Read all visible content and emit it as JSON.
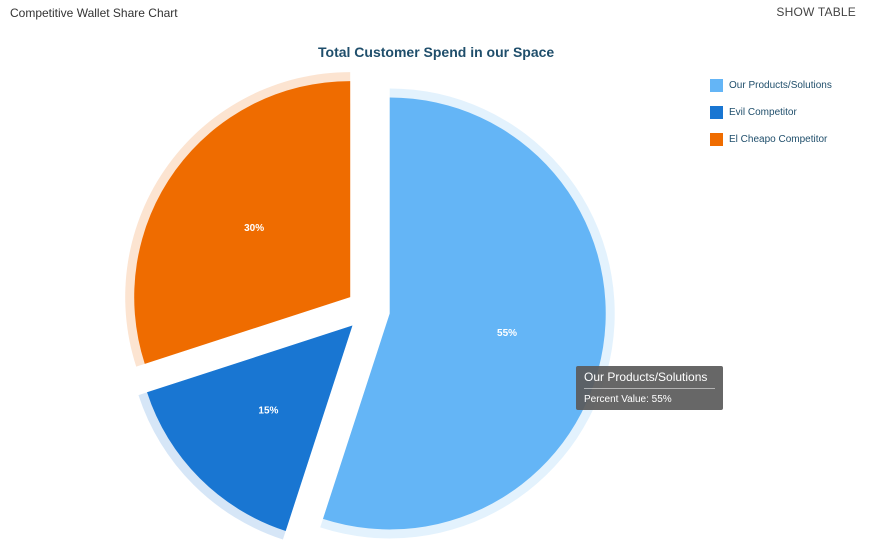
{
  "header": {
    "title": "Competitive Wallet Share Chart",
    "show_table_label": "SHOW TABLE"
  },
  "chart_data": {
    "type": "pie",
    "title": "Total Customer Spend in our Space",
    "categories": [
      "Our Products/Solutions",
      "Evil Competitor",
      "El Cheapo Competitor"
    ],
    "values": [
      55,
      15,
      30
    ],
    "labels": [
      "55%",
      "15%",
      "30%"
    ],
    "colors": [
      "#64b5f6",
      "#1976d2",
      "#ef6c00"
    ],
    "legend_position": "top-right",
    "highlighted": "Our Products/Solutions"
  },
  "legend": {
    "items": [
      {
        "label": "Our Products/Solutions",
        "color": "#64b5f6"
      },
      {
        "label": "Evil Competitor",
        "color": "#1976d2"
      },
      {
        "label": "El Cheapo Competitor",
        "color": "#ef6c00"
      }
    ]
  },
  "tooltip": {
    "title": "Our Products/Solutions",
    "body": "Percent Value: 55%"
  }
}
